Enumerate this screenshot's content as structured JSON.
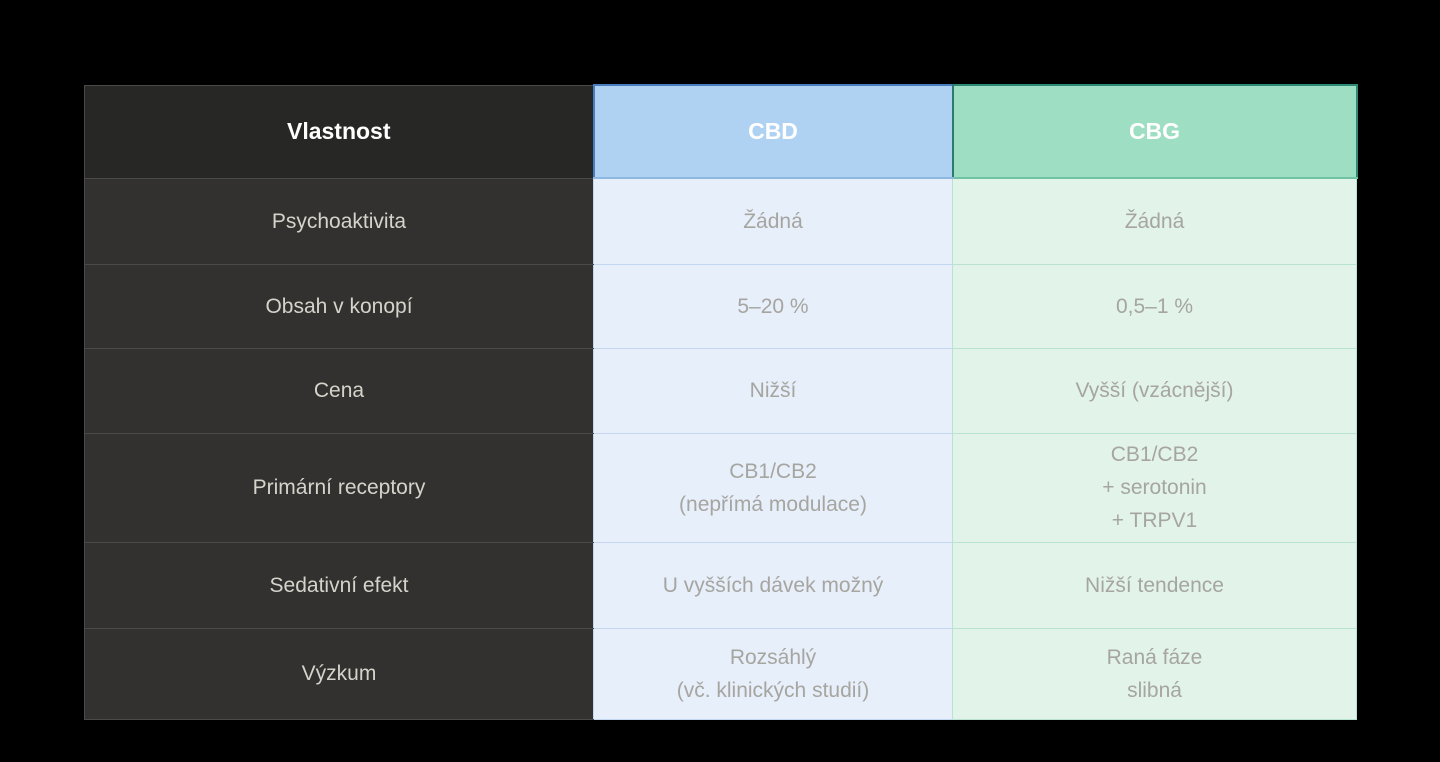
{
  "table": {
    "columns": [
      {
        "label": "Vlastnost"
      },
      {
        "label": "CBD"
      },
      {
        "label": "CBG"
      }
    ],
    "rows": [
      {
        "property": "Psychoaktivita",
        "cbd": "Žádná",
        "cbg": "Žádná"
      },
      {
        "property": "Obsah v konopí",
        "cbd": "5–20 %",
        "cbg": "0,5–1 %"
      },
      {
        "property": "Cena",
        "cbd": "Nižší",
        "cbg": "Vyšší (vzácnější)"
      },
      {
        "property": "Primární receptory",
        "cbd": "CB1/CB2\n(nepřímá modulace)",
        "cbg": "CB1/CB2\n+ serotonin\n+ TRPV1"
      },
      {
        "property": "Sedativní efekt",
        "cbd": "U vyšších dávek možný",
        "cbg": "Nižší tendence"
      },
      {
        "property": "Výzkum",
        "cbd": "Rozsáhlý\n(vč. klinických studií)",
        "cbg": "Raná fáze\nslibná"
      }
    ],
    "colors": {
      "page_background": "#000000",
      "property_header_bg": "#272726",
      "property_cell_bg": "#32312f",
      "property_text": "#d6d3cb",
      "cbd_header_bg": "#b0d2f2",
      "cbd_header_border": "#4a7dbf",
      "cbd_cell_bg": "#e7effb",
      "cbg_header_bg": "#9edec2",
      "cbg_header_border": "#2e8a75",
      "cbg_cell_bg": "#e2f3ea",
      "cell_text": "#a6a5a0",
      "header_text": "#ffffff"
    }
  }
}
